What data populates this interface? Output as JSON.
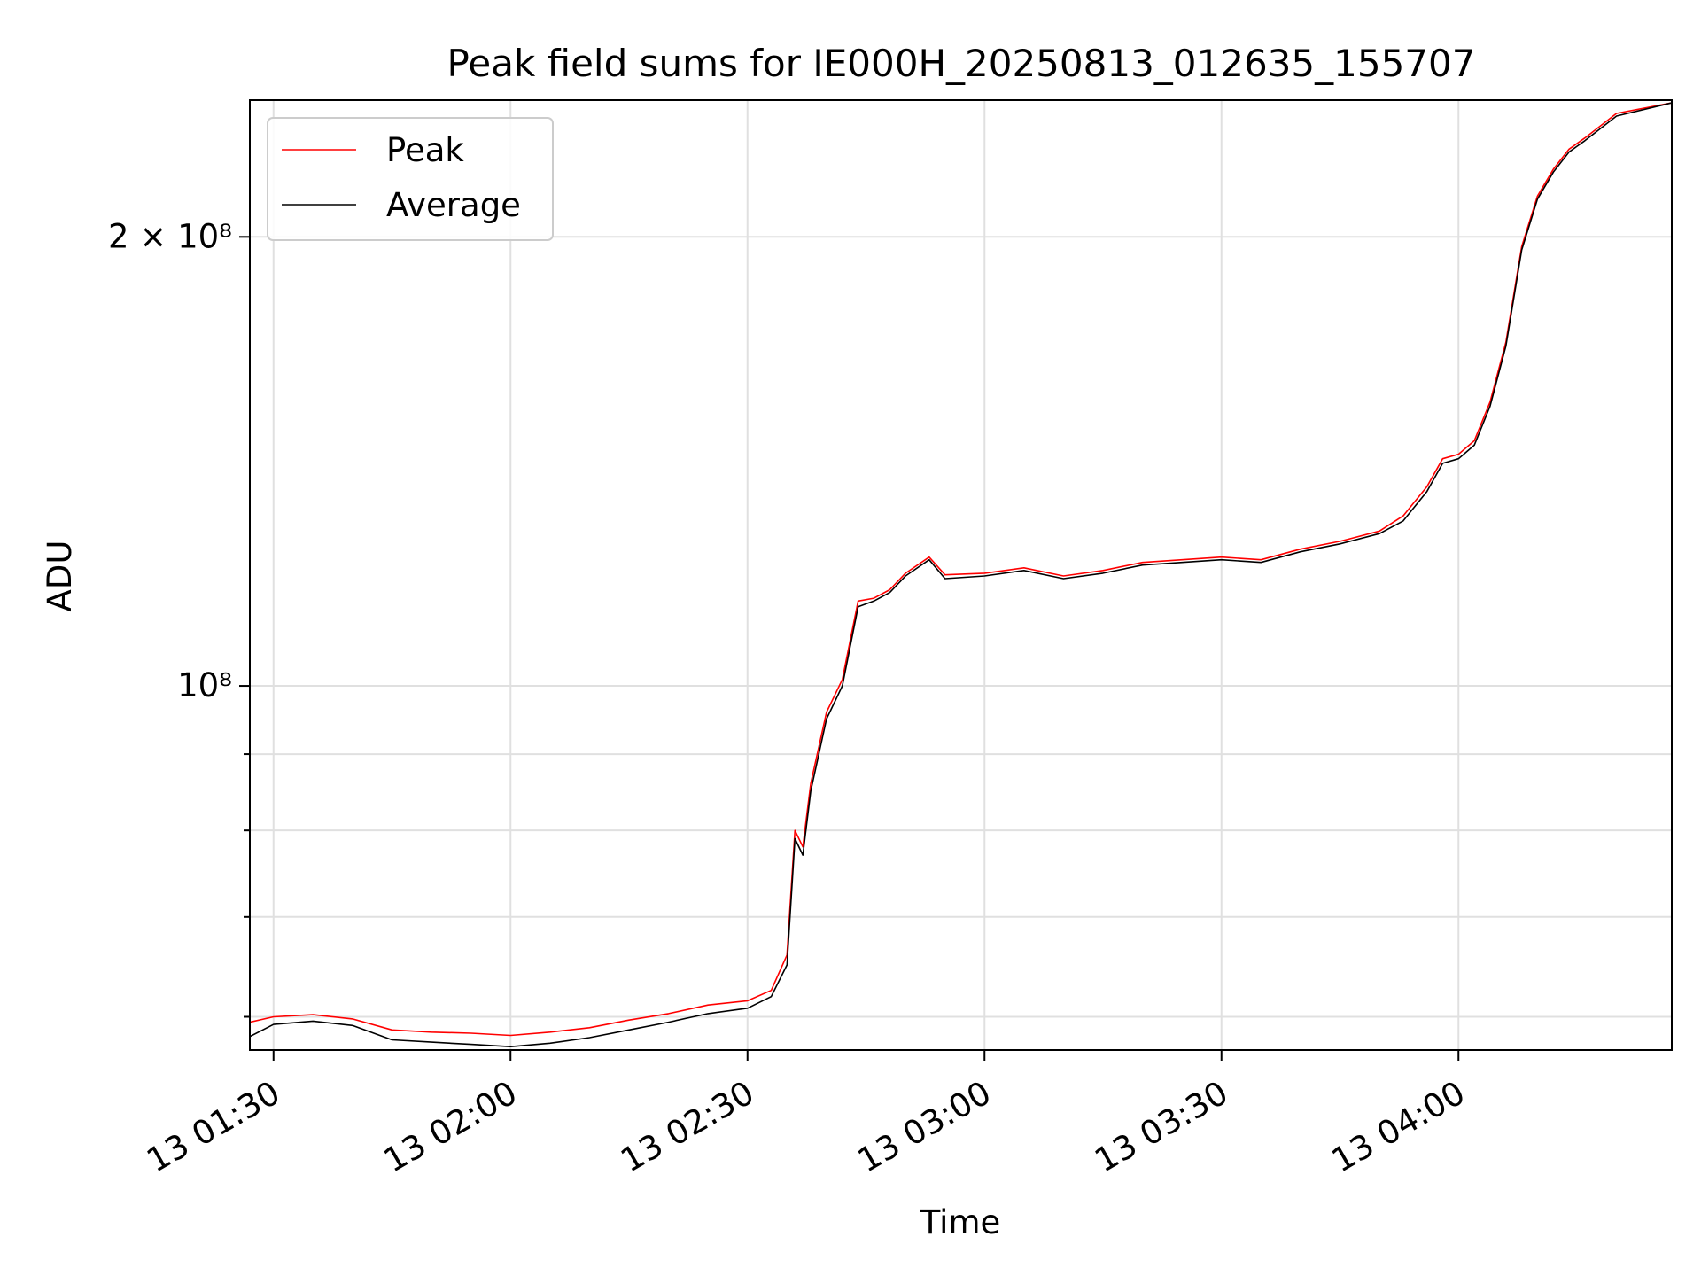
{
  "chart_data": {
    "type": "line",
    "title": "Peak field sums for IE000H_20250813_012635_155707",
    "xlabel": "Time",
    "ylabel": "ADU",
    "x_scale": "time",
    "y_scale": "log",
    "xlim": [
      "13 01:27",
      "13 04:27"
    ],
    "ylim": [
      57000000,
      247000000
    ],
    "x_ticks": [
      {
        "value": "13 01:30",
        "label": "13 01:30"
      },
      {
        "value": "13 02:00",
        "label": "13 02:00"
      },
      {
        "value": "13 02:30",
        "label": "13 02:30"
      },
      {
        "value": "13 03:00",
        "label": "13 03:00"
      },
      {
        "value": "13 03:30",
        "label": "13 03:30"
      },
      {
        "value": "13 04:00",
        "label": "13 04:00"
      }
    ],
    "y_major_ticks": [
      {
        "value": 100000000,
        "label": "10⁸"
      },
      {
        "value": 200000000,
        "label": "2 × 10⁸"
      }
    ],
    "y_minor_ticks": [
      60000000,
      70000000,
      80000000,
      90000000
    ],
    "grid": true,
    "legend_position": "top-left",
    "x": [
      "13 01:27",
      "13 01:30",
      "13 01:35",
      "13 01:40",
      "13 01:45",
      "13 01:50",
      "13 01:55",
      "13 02:00",
      "13 02:05",
      "13 02:10",
      "13 02:15",
      "13 02:20",
      "13 02:25",
      "13 02:30",
      "13 02:33",
      "13 02:35",
      "13 02:36",
      "13 02:37",
      "13 02:38",
      "13 02:40",
      "13 02:42",
      "13 02:44",
      "13 02:46",
      "13 02:48",
      "13 02:50",
      "13 02:53",
      "13 02:55",
      "13 03:00",
      "13 03:05",
      "13 03:10",
      "13 03:15",
      "13 03:20",
      "13 03:25",
      "13 03:30",
      "13 03:35",
      "13 03:40",
      "13 03:45",
      "13 03:50",
      "13 03:53",
      "13 03:56",
      "13 03:58",
      "13 04:00",
      "13 04:02",
      "13 04:04",
      "13 04:06",
      "13 04:08",
      "13 04:10",
      "13 04:12",
      "13 04:14",
      "13 04:16",
      "13 04:20",
      "13 04:27"
    ],
    "series": [
      {
        "name": "Peak",
        "color": "#ff0000",
        "values": [
          59500000,
          60000000,
          60200000,
          59800000,
          58800000,
          58600000,
          58500000,
          58300000,
          58600000,
          59000000,
          59700000,
          60300000,
          61100000,
          61500000,
          62500000,
          66000000,
          80000000,
          78000000,
          86000000,
          96000000,
          101000000,
          114000000,
          114500000,
          116000000,
          119000000,
          122000000,
          118700000,
          119000000,
          120000000,
          118500000,
          119500000,
          121000000,
          121500000,
          122000000,
          121500000,
          123500000,
          125000000,
          127000000,
          130000000,
          136000000,
          142000000,
          143000000,
          146000000,
          155000000,
          170000000,
          197000000,
          213000000,
          222000000,
          229000000,
          233000000,
          242000000,
          246000000
        ]
      },
      {
        "name": "Average",
        "color": "#000000",
        "values": [
          58200000,
          59300000,
          59600000,
          59200000,
          57900000,
          57700000,
          57500000,
          57300000,
          57600000,
          58100000,
          58800000,
          59500000,
          60300000,
          60800000,
          61900000,
          65000000,
          79000000,
          77000000,
          85000000,
          95000000,
          100000000,
          113000000,
          114000000,
          115500000,
          118500000,
          121500000,
          118000000,
          118500000,
          119500000,
          118000000,
          119000000,
          120500000,
          121000000,
          121500000,
          121000000,
          123000000,
          124500000,
          126500000,
          129000000,
          135000000,
          141000000,
          142000000,
          145000000,
          154000000,
          169000000,
          196000000,
          212000000,
          221000000,
          228000000,
          232000000,
          241000000,
          246000000
        ]
      }
    ]
  }
}
